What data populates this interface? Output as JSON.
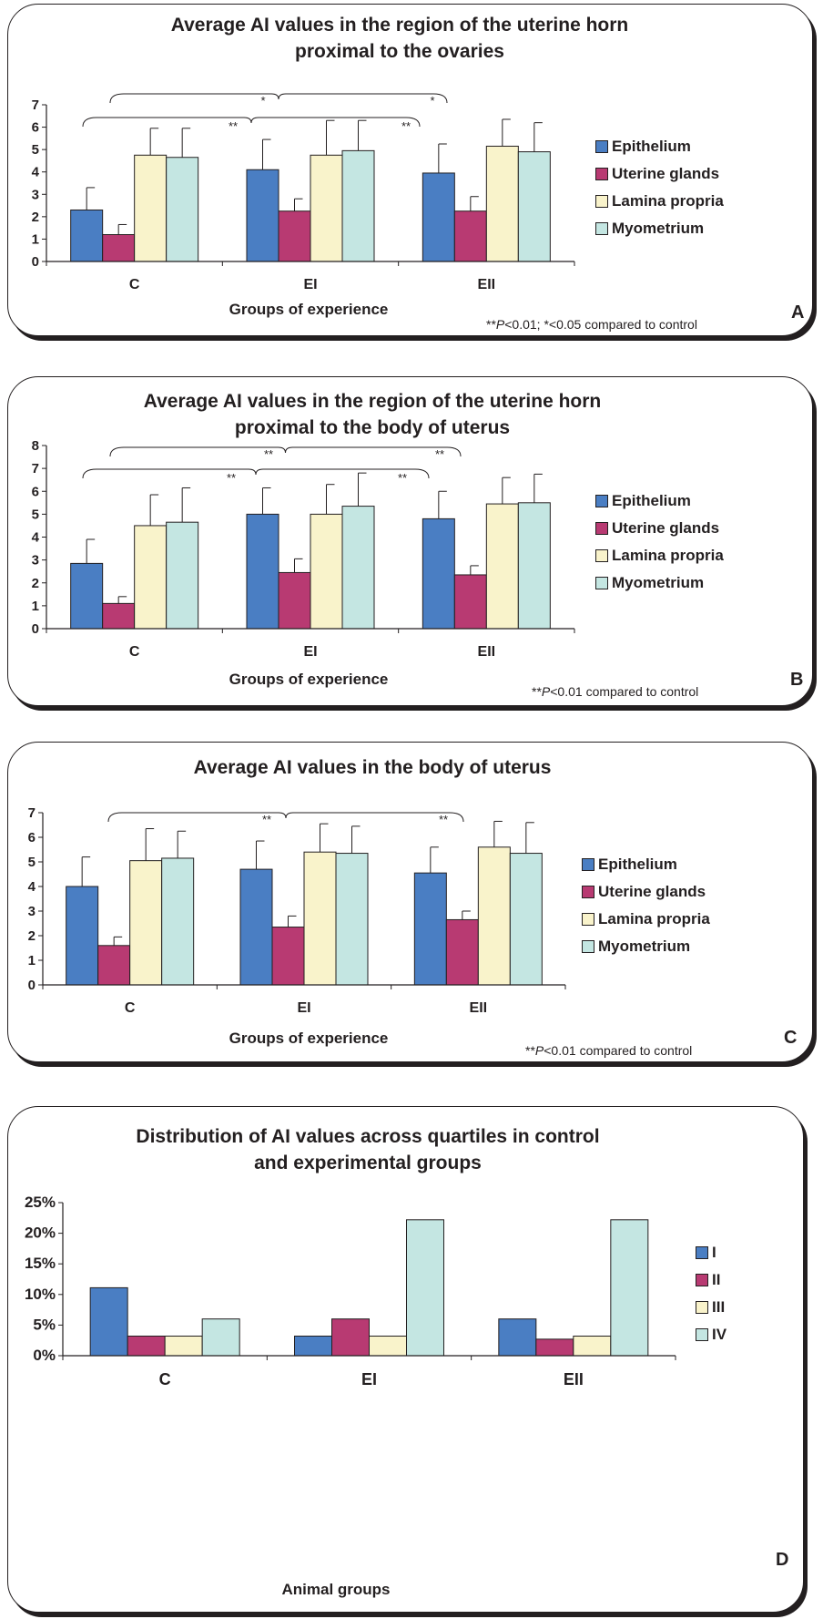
{
  "colors": {
    "Epithelium": "#4a7ec3",
    "Uterine glands": "#b83a72",
    "Lamina propria": "#f9f3cb",
    "Myometrium": "#c4e6e2",
    "I": "#4a7ec3",
    "II": "#b83a72",
    "III": "#f9f3cb",
    "IV": "#c4e6e2"
  },
  "chart_data": [
    {
      "type": "bar",
      "panel_letter": "A",
      "title": "Average AI values in the region of the uterine horn proximal to the ovaries",
      "title_lines": [
        "Average AI values in the region of the uterine horn",
        "proximal to the ovaries"
      ],
      "xlabel": "Groups of experience",
      "categories": [
        "C",
        "EI",
        "EII"
      ],
      "ylim": [
        0,
        7
      ],
      "yticks": [
        "0",
        "1",
        "2",
        "3",
        "4",
        "5",
        "6",
        "7"
      ],
      "series": [
        {
          "name": "Epithelium",
          "values": [
            2.3,
            4.1,
            3.95
          ],
          "errors": [
            1.0,
            1.35,
            1.3
          ]
        },
        {
          "name": "Uterine glands",
          "values": [
            1.2,
            2.25,
            2.25
          ],
          "errors": [
            0.45,
            0.55,
            0.65
          ]
        },
        {
          "name": "Lamina propria",
          "values": [
            4.75,
            4.75,
            5.15
          ],
          "errors": [
            1.2,
            1.55,
            1.2
          ]
        },
        {
          "name": "Myometrium",
          "values": [
            4.65,
            4.95,
            4.9
          ],
          "errors": [
            1.3,
            1.35,
            1.3
          ]
        }
      ],
      "significance": [
        {
          "from": "C",
          "to": "EI",
          "label": "**"
        },
        {
          "from": "C",
          "to": "EII",
          "label": "**"
        },
        {
          "from": "C",
          "to": "EI",
          "label": "*"
        },
        {
          "from": "C",
          "to": "EII",
          "label": "*"
        }
      ],
      "note_prefix": "**",
      "note_p": "P",
      "note_rest": "<0.01; *<0.05 compared to control"
    },
    {
      "type": "bar",
      "panel_letter": "B",
      "title": "Average AI values in the region of the uterine horn proximal to the body of uterus",
      "title_lines": [
        "Average AI values in the region of the uterine horn",
        "proximal to the body of uterus"
      ],
      "xlabel": "Groups of experience",
      "categories": [
        "C",
        "EI",
        "EII"
      ],
      "ylim": [
        0,
        8
      ],
      "yticks": [
        "0",
        "1",
        "2",
        "3",
        "4",
        "5",
        "6",
        "7",
        "8"
      ],
      "series": [
        {
          "name": "Epithelium",
          "values": [
            2.85,
            5.0,
            4.8
          ],
          "errors": [
            1.05,
            1.15,
            1.2
          ]
        },
        {
          "name": "Uterine glands",
          "values": [
            1.1,
            2.45,
            2.35
          ],
          "errors": [
            0.3,
            0.6,
            0.4
          ]
        },
        {
          "name": "Lamina propria",
          "values": [
            4.5,
            5.0,
            5.45
          ],
          "errors": [
            1.35,
            1.3,
            1.15
          ]
        },
        {
          "name": "Myometrium",
          "values": [
            4.65,
            5.35,
            5.5
          ],
          "errors": [
            1.5,
            1.45,
            1.25
          ]
        }
      ],
      "significance": [
        {
          "from": "C",
          "to": "EI",
          "label": "**"
        },
        {
          "from": "C",
          "to": "EII",
          "label": "**"
        },
        {
          "from": "C",
          "to": "EI",
          "label": "**"
        },
        {
          "from": "C",
          "to": "EII",
          "label": "**"
        }
      ],
      "note_prefix": "**",
      "note_p": "P",
      "note_rest": "<0.01 compared to control"
    },
    {
      "type": "bar",
      "panel_letter": "C",
      "title": "Average AI values in the body of uterus",
      "title_lines": [
        "Average AI values in the body of uterus"
      ],
      "xlabel": "Groups of experience",
      "categories": [
        "C",
        "EI",
        "EII"
      ],
      "ylim": [
        0,
        7
      ],
      "yticks": [
        "0",
        "1",
        "2",
        "3",
        "4",
        "5",
        "6",
        "7"
      ],
      "series": [
        {
          "name": "Epithelium",
          "values": [
            4.0,
            4.7,
            4.55
          ],
          "errors": [
            1.2,
            1.15,
            1.05
          ]
        },
        {
          "name": "Uterine glands",
          "values": [
            1.6,
            2.35,
            2.65
          ],
          "errors": [
            0.35,
            0.45,
            0.35
          ]
        },
        {
          "name": "Lamina propria",
          "values": [
            5.05,
            5.4,
            5.6
          ],
          "errors": [
            1.3,
            1.15,
            1.05
          ]
        },
        {
          "name": "Myometrium",
          "values": [
            5.15,
            5.35,
            5.35
          ],
          "errors": [
            1.1,
            1.1,
            1.25
          ]
        }
      ],
      "significance": [
        {
          "from": "C",
          "to": "EI",
          "label": "**"
        },
        {
          "from": "C",
          "to": "EII",
          "label": "**"
        }
      ],
      "note_prefix": "**",
      "note_p": "P",
      "note_rest": "<0.01 compared to control"
    },
    {
      "type": "bar",
      "panel_letter": "D",
      "title": "Distribution of AI values across quartiles in control and experimental groups",
      "title_lines": [
        "Distribution of AI values across quartiles in control",
        "and experimental groups"
      ],
      "xlabel": "Animal groups",
      "categories": [
        "C",
        "EI",
        "EII"
      ],
      "ylim": [
        0,
        25
      ],
      "yticks": [
        "0%",
        "5%",
        "10%",
        "15%",
        "20%",
        "25%"
      ],
      "series": [
        {
          "name": "I",
          "values": [
            11.1,
            3.2,
            6.0
          ]
        },
        {
          "name": "II",
          "values": [
            3.2,
            6.0,
            2.7
          ]
        },
        {
          "name": "III",
          "values": [
            3.2,
            3.2,
            3.2
          ]
        },
        {
          "name": "IV",
          "values": [
            6.0,
            22.2,
            22.2
          ]
        }
      ],
      "significance": []
    }
  ]
}
